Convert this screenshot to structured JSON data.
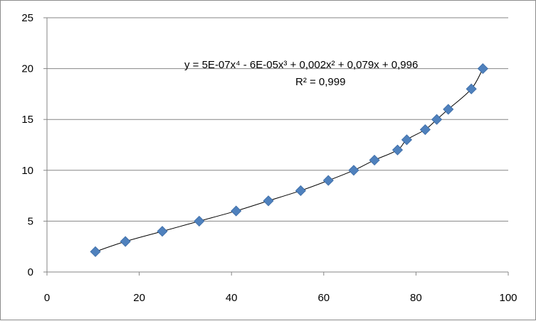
{
  "chart_data": {
    "type": "scatter",
    "title": "",
    "xlabel": "",
    "ylabel": "",
    "xlim": [
      0,
      100
    ],
    "ylim": [
      0,
      25
    ],
    "xticks": [
      "0",
      "20",
      "40",
      "60",
      "80",
      "100"
    ],
    "yticks": [
      "0",
      "5",
      "10",
      "15",
      "20",
      "25"
    ],
    "grid": "horizontal major gridlines",
    "legend": "none",
    "marker": "diamond",
    "marker_color": "#4f81bd",
    "trendline_color": "#000000",
    "series": [
      {
        "x": [
          10.5,
          17,
          25,
          33,
          41,
          48,
          55,
          61,
          66.5,
          71,
          76,
          78,
          82,
          84.5,
          87,
          92,
          94.5
        ],
        "y": [
          2,
          3,
          4,
          5,
          6,
          7,
          8,
          9,
          10,
          11,
          12,
          13,
          14,
          15,
          16,
          18,
          20
        ]
      }
    ],
    "trendline": {
      "type": "polynomial",
      "order": 4,
      "equation": "y = 5E-07x⁴ - 6E-05x³ + 0,002x² + 0,079x + 0,996",
      "r_squared": "R² = 0,999",
      "coefficients": [
        5e-07,
        -6e-05,
        0.002,
        0.079,
        0.996
      ]
    }
  }
}
